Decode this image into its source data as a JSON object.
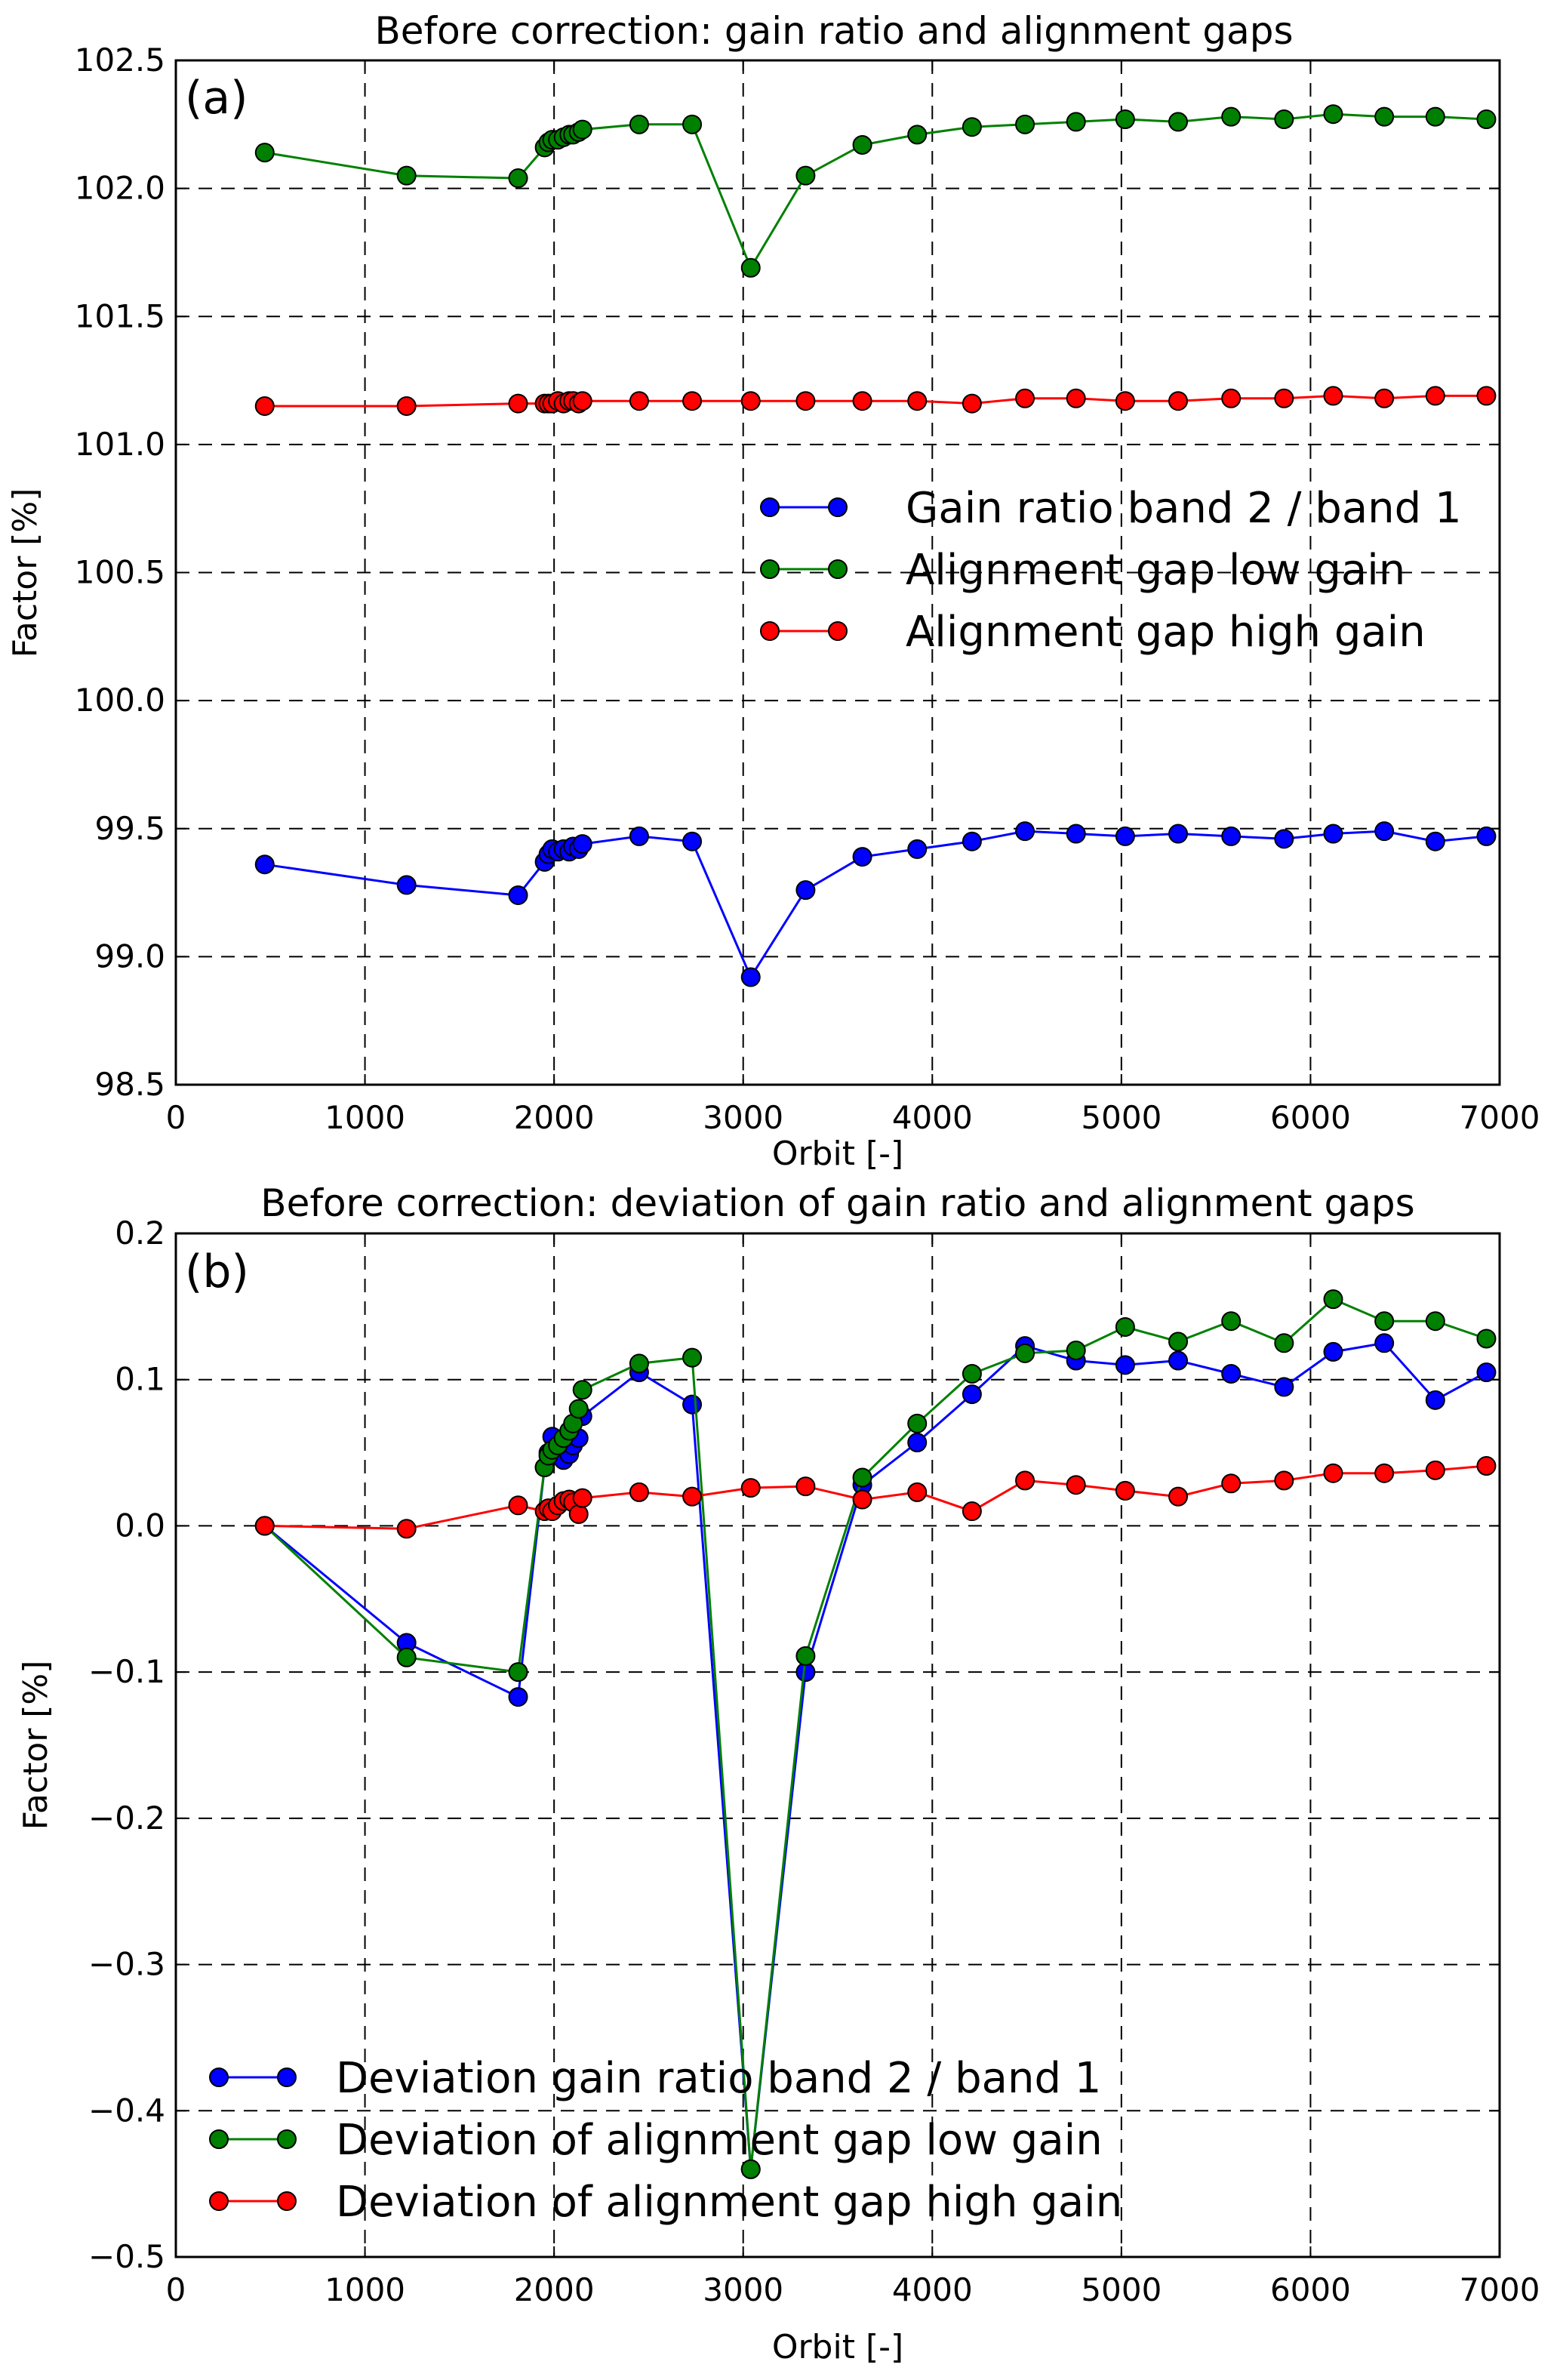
{
  "chart_data": [
    {
      "type": "line",
      "panel_label": "(a)",
      "title": "Before correction: gain ratio and alignment gaps",
      "xlabel": "Orbit [-]",
      "ylabel": "Factor [%]",
      "xlim": [
        0,
        7000
      ],
      "ylim": [
        98.5,
        102.5
      ],
      "xticks": [
        "0",
        "1000",
        "2000",
        "3000",
        "4000",
        "5000",
        "6000",
        "7000"
      ],
      "yticks": [
        "98.5",
        "99.0",
        "99.5",
        "100.0",
        "100.5",
        "101.0",
        "101.5",
        "102.0",
        "102.5"
      ],
      "grid": true,
      "legend_position": "center-right",
      "series": [
        {
          "name": "Gain ratio band 2 / band 1",
          "color": "#0000ff",
          "x": [
            470,
            1220,
            1810,
            1950,
            1970,
            1990,
            2020,
            2050,
            2080,
            2100,
            2130,
            2150,
            2450,
            2730,
            3040,
            3330,
            3630,
            3920,
            4210,
            4490,
            4760,
            5020,
            5300,
            5580,
            5860,
            6120,
            6390,
            6660,
            6930
          ],
          "y": [
            99.36,
            99.28,
            99.24,
            99.37,
            99.4,
            99.42,
            99.41,
            99.42,
            99.41,
            99.43,
            99.42,
            99.44,
            99.47,
            99.45,
            98.92,
            99.26,
            99.39,
            99.42,
            99.45,
            99.49,
            99.48,
            99.47,
            99.48,
            99.47,
            99.46,
            99.48,
            99.49,
            99.45,
            99.47
          ]
        },
        {
          "name": "Alignment gap low gain",
          "color": "#008000",
          "x": [
            470,
            1220,
            1810,
            1950,
            1970,
            1990,
            2020,
            2050,
            2080,
            2100,
            2130,
            2150,
            2450,
            2730,
            3040,
            3330,
            3630,
            3920,
            4210,
            4490,
            4760,
            5020,
            5300,
            5580,
            5860,
            6120,
            6390,
            6660,
            6930
          ],
          "y": [
            102.14,
            102.05,
            102.04,
            102.16,
            102.18,
            102.19,
            102.19,
            102.2,
            102.21,
            102.21,
            102.22,
            102.23,
            102.25,
            102.25,
            101.69,
            102.05,
            102.17,
            102.21,
            102.24,
            102.25,
            102.26,
            102.27,
            102.26,
            102.28,
            102.27,
            102.29,
            102.28,
            102.28,
            102.27
          ]
        },
        {
          "name": "Alignment gap high gain",
          "color": "#ff0000",
          "x": [
            470,
            1220,
            1810,
            1950,
            1970,
            1990,
            2020,
            2050,
            2080,
            2100,
            2130,
            2150,
            2450,
            2730,
            3040,
            3330,
            3630,
            3920,
            4210,
            4490,
            4760,
            5020,
            5300,
            5580,
            5860,
            6120,
            6390,
            6660,
            6930
          ],
          "y": [
            101.15,
            101.15,
            101.16,
            101.16,
            101.16,
            101.16,
            101.17,
            101.16,
            101.17,
            101.17,
            101.16,
            101.17,
            101.17,
            101.17,
            101.17,
            101.17,
            101.17,
            101.17,
            101.16,
            101.18,
            101.18,
            101.17,
            101.17,
            101.18,
            101.18,
            101.19,
            101.18,
            101.19,
            101.19
          ]
        }
      ]
    },
    {
      "type": "line",
      "panel_label": "(b)",
      "title": "Before correction: deviation of gain ratio and alignment gaps",
      "xlabel": "Orbit [-]",
      "ylabel": "Factor [%]",
      "xlim": [
        0,
        7000
      ],
      "ylim": [
        -0.5,
        0.2
      ],
      "xticks": [
        "0",
        "1000",
        "2000",
        "3000",
        "4000",
        "5000",
        "6000",
        "7000"
      ],
      "yticks": [
        "−0.5",
        "−0.4",
        "−0.3",
        "−0.2",
        "−0.1",
        "0.0",
        "0.1",
        "0.2"
      ],
      "grid": true,
      "legend_position": "lower-left",
      "series": [
        {
          "name": "Deviation gain ratio band 2 / band 1",
          "color": "#0000ff",
          "x": [
            470,
            1220,
            1810,
            1950,
            1970,
            1990,
            2020,
            2050,
            2080,
            2100,
            2130,
            2150,
            2450,
            2730,
            3040,
            3330,
            3630,
            3920,
            4210,
            4490,
            4760,
            5020,
            5300,
            5580,
            5860,
            6120,
            6390,
            6660,
            6930
          ],
          "y": [
            0.0,
            -0.08,
            -0.117,
            0.04,
            0.05,
            0.061,
            0.052,
            0.045,
            0.049,
            0.055,
            0.06,
            0.075,
            0.105,
            0.083,
            -0.44,
            -0.1,
            0.028,
            0.057,
            0.09,
            0.123,
            0.113,
            0.11,
            0.113,
            0.104,
            0.095,
            0.119,
            0.125,
            0.086,
            0.105
          ]
        },
        {
          "name": "Deviation of alignment gap low gain",
          "color": "#008000",
          "x": [
            470,
            1220,
            1810,
            1950,
            1970,
            1990,
            2020,
            2050,
            2080,
            2100,
            2130,
            2150,
            2450,
            2730,
            3040,
            3330,
            3630,
            3920,
            4210,
            4490,
            4760,
            5020,
            5300,
            5580,
            5860,
            6120,
            6390,
            6660,
            6930
          ],
          "y": [
            0.0,
            -0.09,
            -0.1,
            0.04,
            0.048,
            0.052,
            0.055,
            0.06,
            0.065,
            0.07,
            0.08,
            0.093,
            0.111,
            0.115,
            -0.44,
            -0.089,
            0.033,
            0.07,
            0.104,
            0.118,
            0.12,
            0.136,
            0.126,
            0.14,
            0.125,
            0.155,
            0.14,
            0.14,
            0.128
          ]
        },
        {
          "name": "Deviation of alignment gap high gain",
          "color": "#ff0000",
          "x": [
            470,
            1220,
            1810,
            1950,
            1970,
            1990,
            2020,
            2050,
            2080,
            2100,
            2130,
            2150,
            2450,
            2730,
            3040,
            3330,
            3630,
            3920,
            4210,
            4490,
            4760,
            5020,
            5300,
            5580,
            5860,
            6120,
            6390,
            6660,
            6930
          ],
          "y": [
            0.0,
            -0.002,
            0.014,
            0.01,
            0.012,
            0.01,
            0.014,
            0.017,
            0.018,
            0.016,
            0.008,
            0.019,
            0.023,
            0.02,
            0.026,
            0.027,
            0.018,
            0.023,
            0.01,
            0.031,
            0.028,
            0.024,
            0.02,
            0.029,
            0.031,
            0.036,
            0.036,
            0.038,
            0.041
          ]
        }
      ]
    }
  ]
}
